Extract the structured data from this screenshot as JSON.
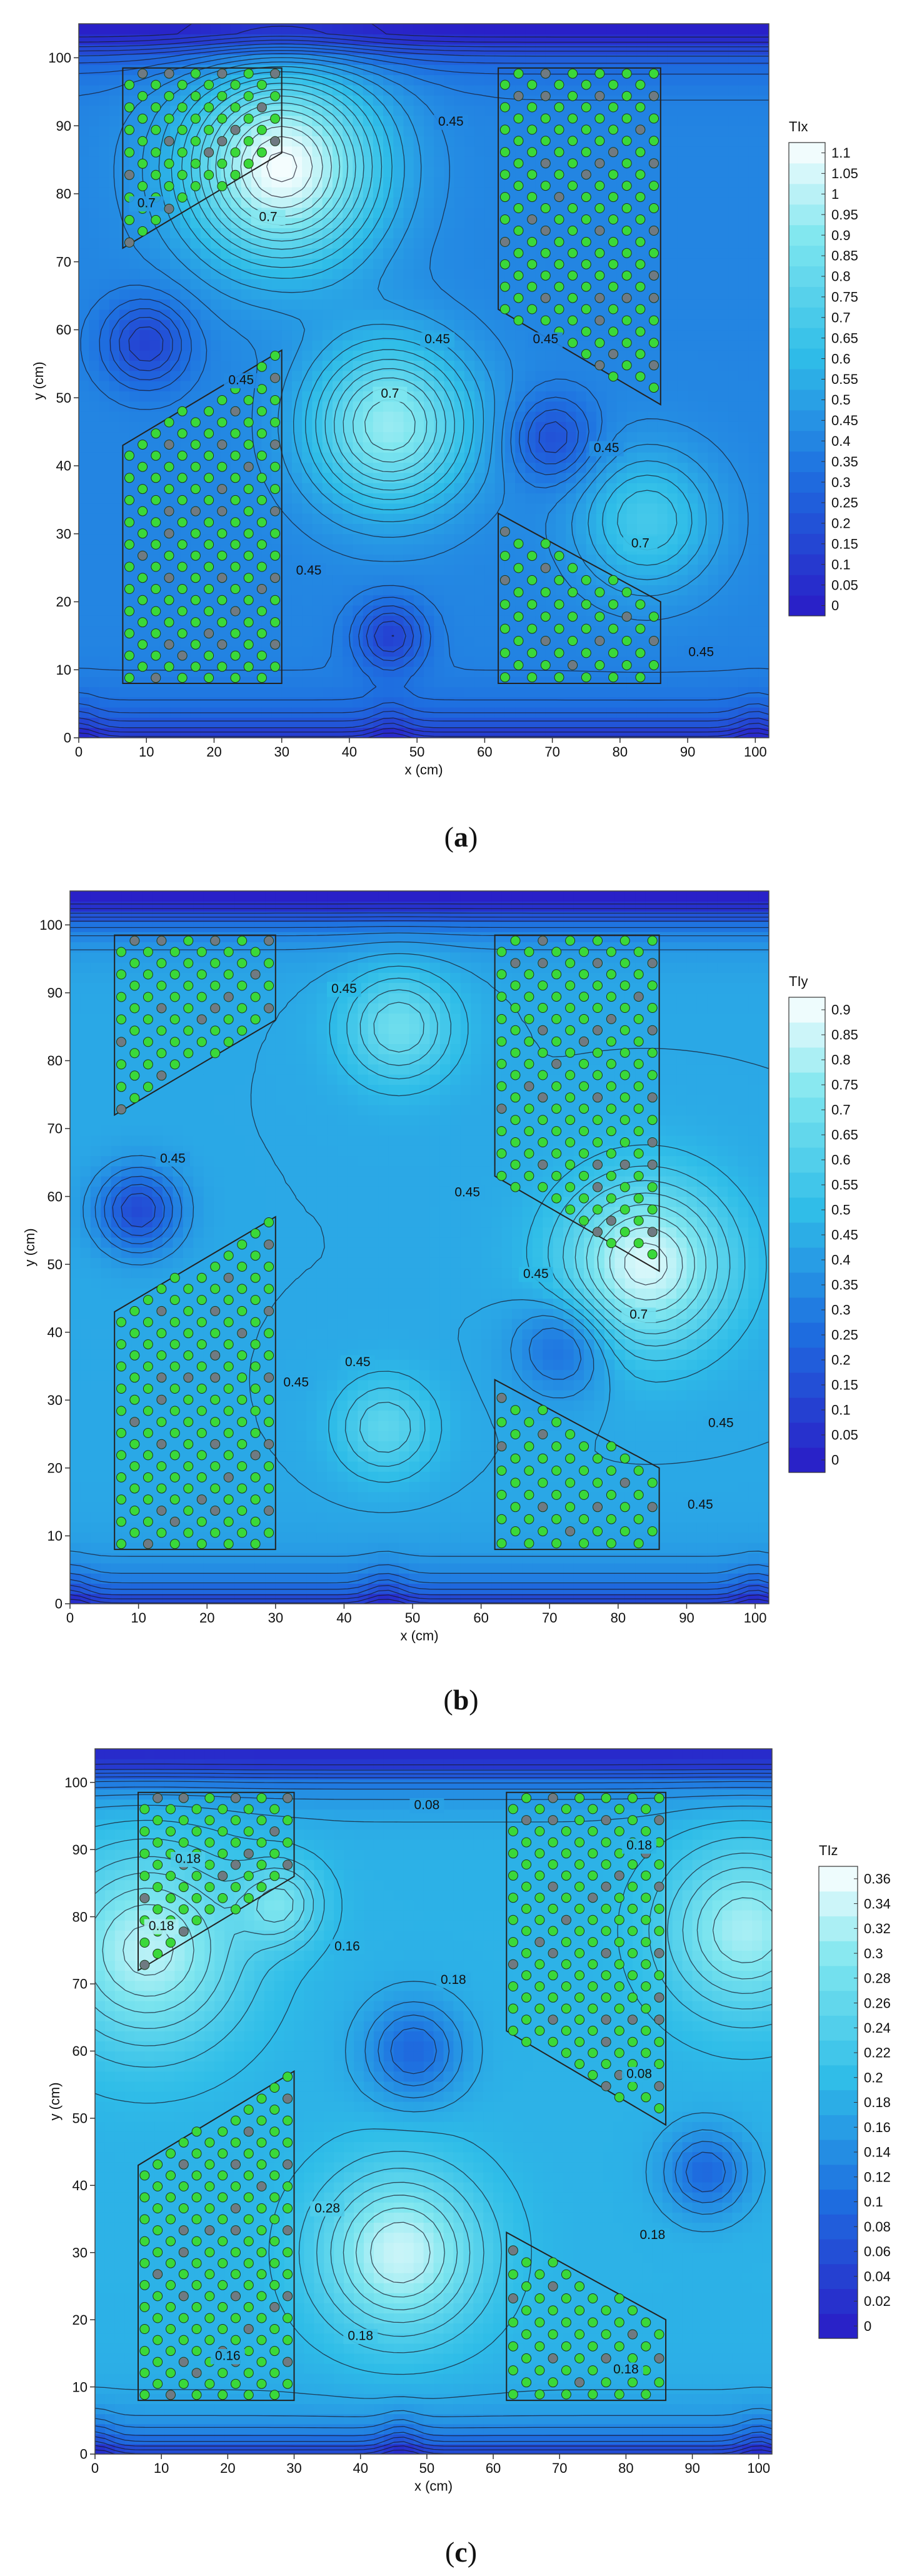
{
  "chart_data": [
    {
      "type": "heatmap",
      "panel_label": "a",
      "xlabel": "x (cm)",
      "ylabel": "y (cm)",
      "xlim": [
        0,
        102
      ],
      "ylim": [
        0,
        105
      ],
      "xticks": [
        0,
        10,
        20,
        30,
        40,
        50,
        60,
        70,
        80,
        90,
        100
      ],
      "yticks": [
        0,
        10,
        20,
        30,
        40,
        50,
        60,
        70,
        80,
        90,
        100
      ],
      "colorbar_title": "TIx",
      "colorbar_ticks": [
        "0",
        "0.05",
        "0.1",
        "0.15",
        "0.2",
        "0.25",
        "0.3",
        "0.35",
        "0.4",
        "0.45",
        "0.5",
        "0.55",
        "0.6",
        "0.65",
        "0.7",
        "0.75",
        "0.8",
        "0.85",
        "0.9",
        "0.95",
        "1",
        "1.05",
        "1.1"
      ],
      "colorbar_range": [
        0,
        1.13
      ],
      "background_level": 0.42,
      "features": [
        {
          "x": 30,
          "y": 84,
          "peak": 1.12,
          "r": 14
        },
        {
          "x": 46,
          "y": 46,
          "peak": 0.95,
          "r": 12
        },
        {
          "x": 84,
          "y": 32,
          "peak": 0.7,
          "r": 10
        },
        {
          "x": 10,
          "y": 58,
          "peak": 0.15,
          "r": 6
        },
        {
          "x": 70,
          "y": 44,
          "peak": 0.2,
          "r": 6
        },
        {
          "x": 46,
          "y": 15,
          "peak": 0.15,
          "r": 5
        }
      ],
      "contour_labels": [
        {
          "x": 55,
          "y": 90,
          "text": "0.45"
        },
        {
          "x": 28,
          "y": 76,
          "text": "0.7"
        },
        {
          "x": 10,
          "y": 78,
          "text": "0.7"
        },
        {
          "x": 53,
          "y": 58,
          "text": "0.45"
        },
        {
          "x": 69,
          "y": 58,
          "text": "0.45"
        },
        {
          "x": 24,
          "y": 52,
          "text": "0.45"
        },
        {
          "x": 46,
          "y": 50,
          "text": "0.7"
        },
        {
          "x": 78,
          "y": 42,
          "text": "0.45"
        },
        {
          "x": 83,
          "y": 28,
          "text": "0.7"
        },
        {
          "x": 34,
          "y": 24,
          "text": "0.45"
        },
        {
          "x": 92,
          "y": 12,
          "text": "0.45"
        }
      ]
    },
    {
      "type": "heatmap",
      "panel_label": "b",
      "xlabel": "x (cm)",
      "ylabel": "y (cm)",
      "xlim": [
        0,
        102
      ],
      "ylim": [
        0,
        105
      ],
      "xticks": [
        0,
        10,
        20,
        30,
        40,
        50,
        60,
        70,
        80,
        90,
        100
      ],
      "yticks": [
        0,
        10,
        20,
        30,
        40,
        50,
        60,
        70,
        80,
        90,
        100
      ],
      "colorbar_title": "TIy",
      "colorbar_ticks": [
        "0",
        "0.05",
        "0.1",
        "0.15",
        "0.2",
        "0.25",
        "0.3",
        "0.35",
        "0.4",
        "0.45",
        "0.5",
        "0.55",
        "0.6",
        "0.65",
        "0.7",
        "0.75",
        "0.8",
        "0.85",
        "0.9"
      ],
      "colorbar_range": [
        0,
        0.93
      ],
      "background_level": 0.45,
      "features": [
        {
          "x": 84,
          "y": 50,
          "peak": 0.88,
          "r": 12
        },
        {
          "x": 48,
          "y": 85,
          "peak": 0.7,
          "r": 8
        },
        {
          "x": 46,
          "y": 26,
          "peak": 0.65,
          "r": 7
        },
        {
          "x": 10,
          "y": 58,
          "peak": 0.15,
          "r": 6
        },
        {
          "x": 72,
          "y": 38,
          "peak": 0.25,
          "r": 7
        }
      ],
      "contour_labels": [
        {
          "x": 40,
          "y": 90,
          "text": "0.45"
        },
        {
          "x": 15,
          "y": 65,
          "text": "0.45"
        },
        {
          "x": 58,
          "y": 60,
          "text": "0.45"
        },
        {
          "x": 68,
          "y": 48,
          "text": "0.45"
        },
        {
          "x": 83,
          "y": 42,
          "text": "0.7"
        },
        {
          "x": 42,
          "y": 35,
          "text": "0.45"
        },
        {
          "x": 33,
          "y": 32,
          "text": "0.45"
        },
        {
          "x": 95,
          "y": 26,
          "text": "0.45"
        },
        {
          "x": 92,
          "y": 14,
          "text": "0.45"
        }
      ]
    },
    {
      "type": "heatmap",
      "panel_label": "c",
      "xlabel": "x (cm)",
      "ylabel": "y (cm)",
      "xlim": [
        0,
        102
      ],
      "ylim": [
        0,
        105
      ],
      "xticks": [
        0,
        10,
        20,
        30,
        40,
        50,
        60,
        70,
        80,
        90,
        100
      ],
      "yticks": [
        0,
        10,
        20,
        30,
        40,
        50,
        60,
        70,
        80,
        90,
        100
      ],
      "colorbar_title": "TIz",
      "colorbar_ticks": [
        "0",
        "0.02",
        "0.04",
        "0.06",
        "0.08",
        "0.1",
        "0.12",
        "0.14",
        "0.16",
        "0.18",
        "0.2",
        "0.22",
        "0.24",
        "0.26",
        "0.28",
        "0.3",
        "0.32",
        "0.34",
        "0.36"
      ],
      "colorbar_range": [
        0,
        0.37
      ],
      "background_level": 0.19,
      "features": [
        {
          "x": 8,
          "y": 75,
          "peak": 0.33,
          "r": 14
        },
        {
          "x": 46,
          "y": 30,
          "peak": 0.34,
          "r": 12
        },
        {
          "x": 98,
          "y": 78,
          "peak": 0.32,
          "r": 12
        },
        {
          "x": 28,
          "y": 82,
          "peak": 0.28,
          "r": 6
        },
        {
          "x": 48,
          "y": 60,
          "peak": 0.1,
          "r": 7
        },
        {
          "x": 92,
          "y": 42,
          "peak": 0.1,
          "r": 6
        }
      ],
      "contour_labels": [
        {
          "x": 50,
          "y": 96,
          "text": "0.08"
        },
        {
          "x": 14,
          "y": 88,
          "text": "0.18"
        },
        {
          "x": 10,
          "y": 78,
          "text": "0.18"
        },
        {
          "x": 82,
          "y": 90,
          "text": "0.18"
        },
        {
          "x": 38,
          "y": 75,
          "text": "0.16"
        },
        {
          "x": 54,
          "y": 70,
          "text": "0.18"
        },
        {
          "x": 82,
          "y": 56,
          "text": "0.08"
        },
        {
          "x": 35,
          "y": 36,
          "text": "0.28"
        },
        {
          "x": 84,
          "y": 32,
          "text": "0.18"
        },
        {
          "x": 40,
          "y": 17,
          "text": "0.18"
        },
        {
          "x": 20,
          "y": 14,
          "text": "0.16"
        },
        {
          "x": 80,
          "y": 12,
          "text": "0.18"
        }
      ]
    }
  ],
  "regions": [
    {
      "vertices": [
        [
          6.5,
          98.5
        ],
        [
          30,
          98.5
        ],
        [
          30,
          86
        ],
        [
          6.5,
          72
        ]
      ],
      "rows": 8,
      "cols": 6
    },
    {
      "vertices": [
        [
          62,
          98.5
        ],
        [
          86,
          98.5
        ],
        [
          86,
          49
        ],
        [
          62,
          63
        ]
      ],
      "rows": 15,
      "cols": 6
    },
    {
      "vertices": [
        [
          6.5,
          8
        ],
        [
          30,
          8
        ],
        [
          30,
          57
        ],
        [
          6.5,
          43
        ]
      ],
      "rows": 15,
      "cols": 6
    },
    {
      "vertices": [
        [
          62,
          8
        ],
        [
          86,
          8
        ],
        [
          86,
          20
        ],
        [
          62,
          33
        ]
      ],
      "rows": 7,
      "cols": 6
    }
  ],
  "colors": {
    "low": "#2a1bc6",
    "mid_low": "#1e6fe0",
    "mid": "#2fbde8",
    "mid_high": "#7fe6ef",
    "high": "#ffffff",
    "dot_green": "#3ad83a",
    "dot_gray": "#6f7a82",
    "contour": "#1a1a2a"
  }
}
